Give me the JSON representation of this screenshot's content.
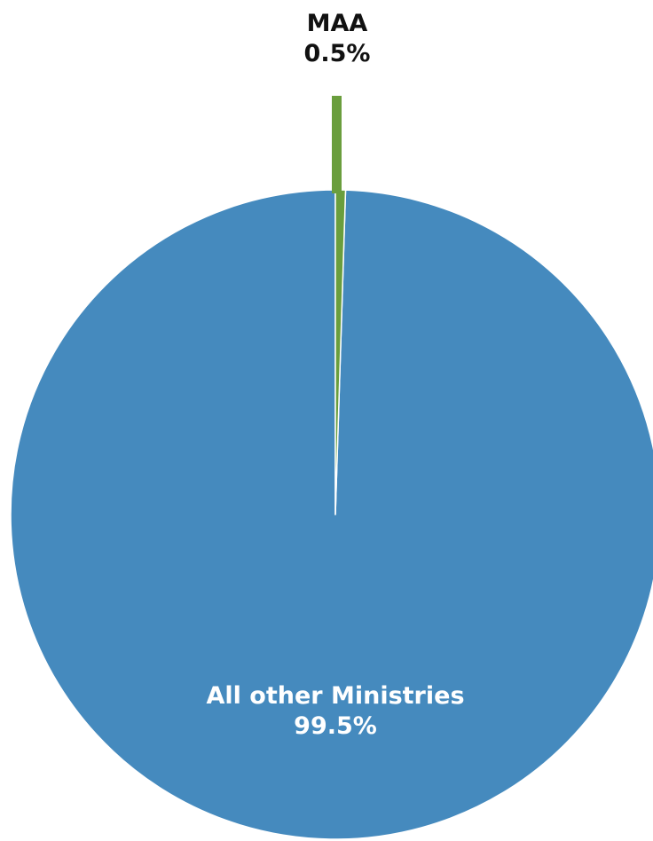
{
  "chart_data": {
    "type": "pie",
    "title": "",
    "slices": [
      {
        "name": "All other Ministries",
        "value": 99.5,
        "label": "99.5%",
        "color": "#458ABE"
      },
      {
        "name": "MAA",
        "value": 0.5,
        "label": "0.5%",
        "color": "#6A9E3D"
      }
    ],
    "legend": "none",
    "start_angle_deg": 0,
    "direction": "counterclockwise"
  }
}
